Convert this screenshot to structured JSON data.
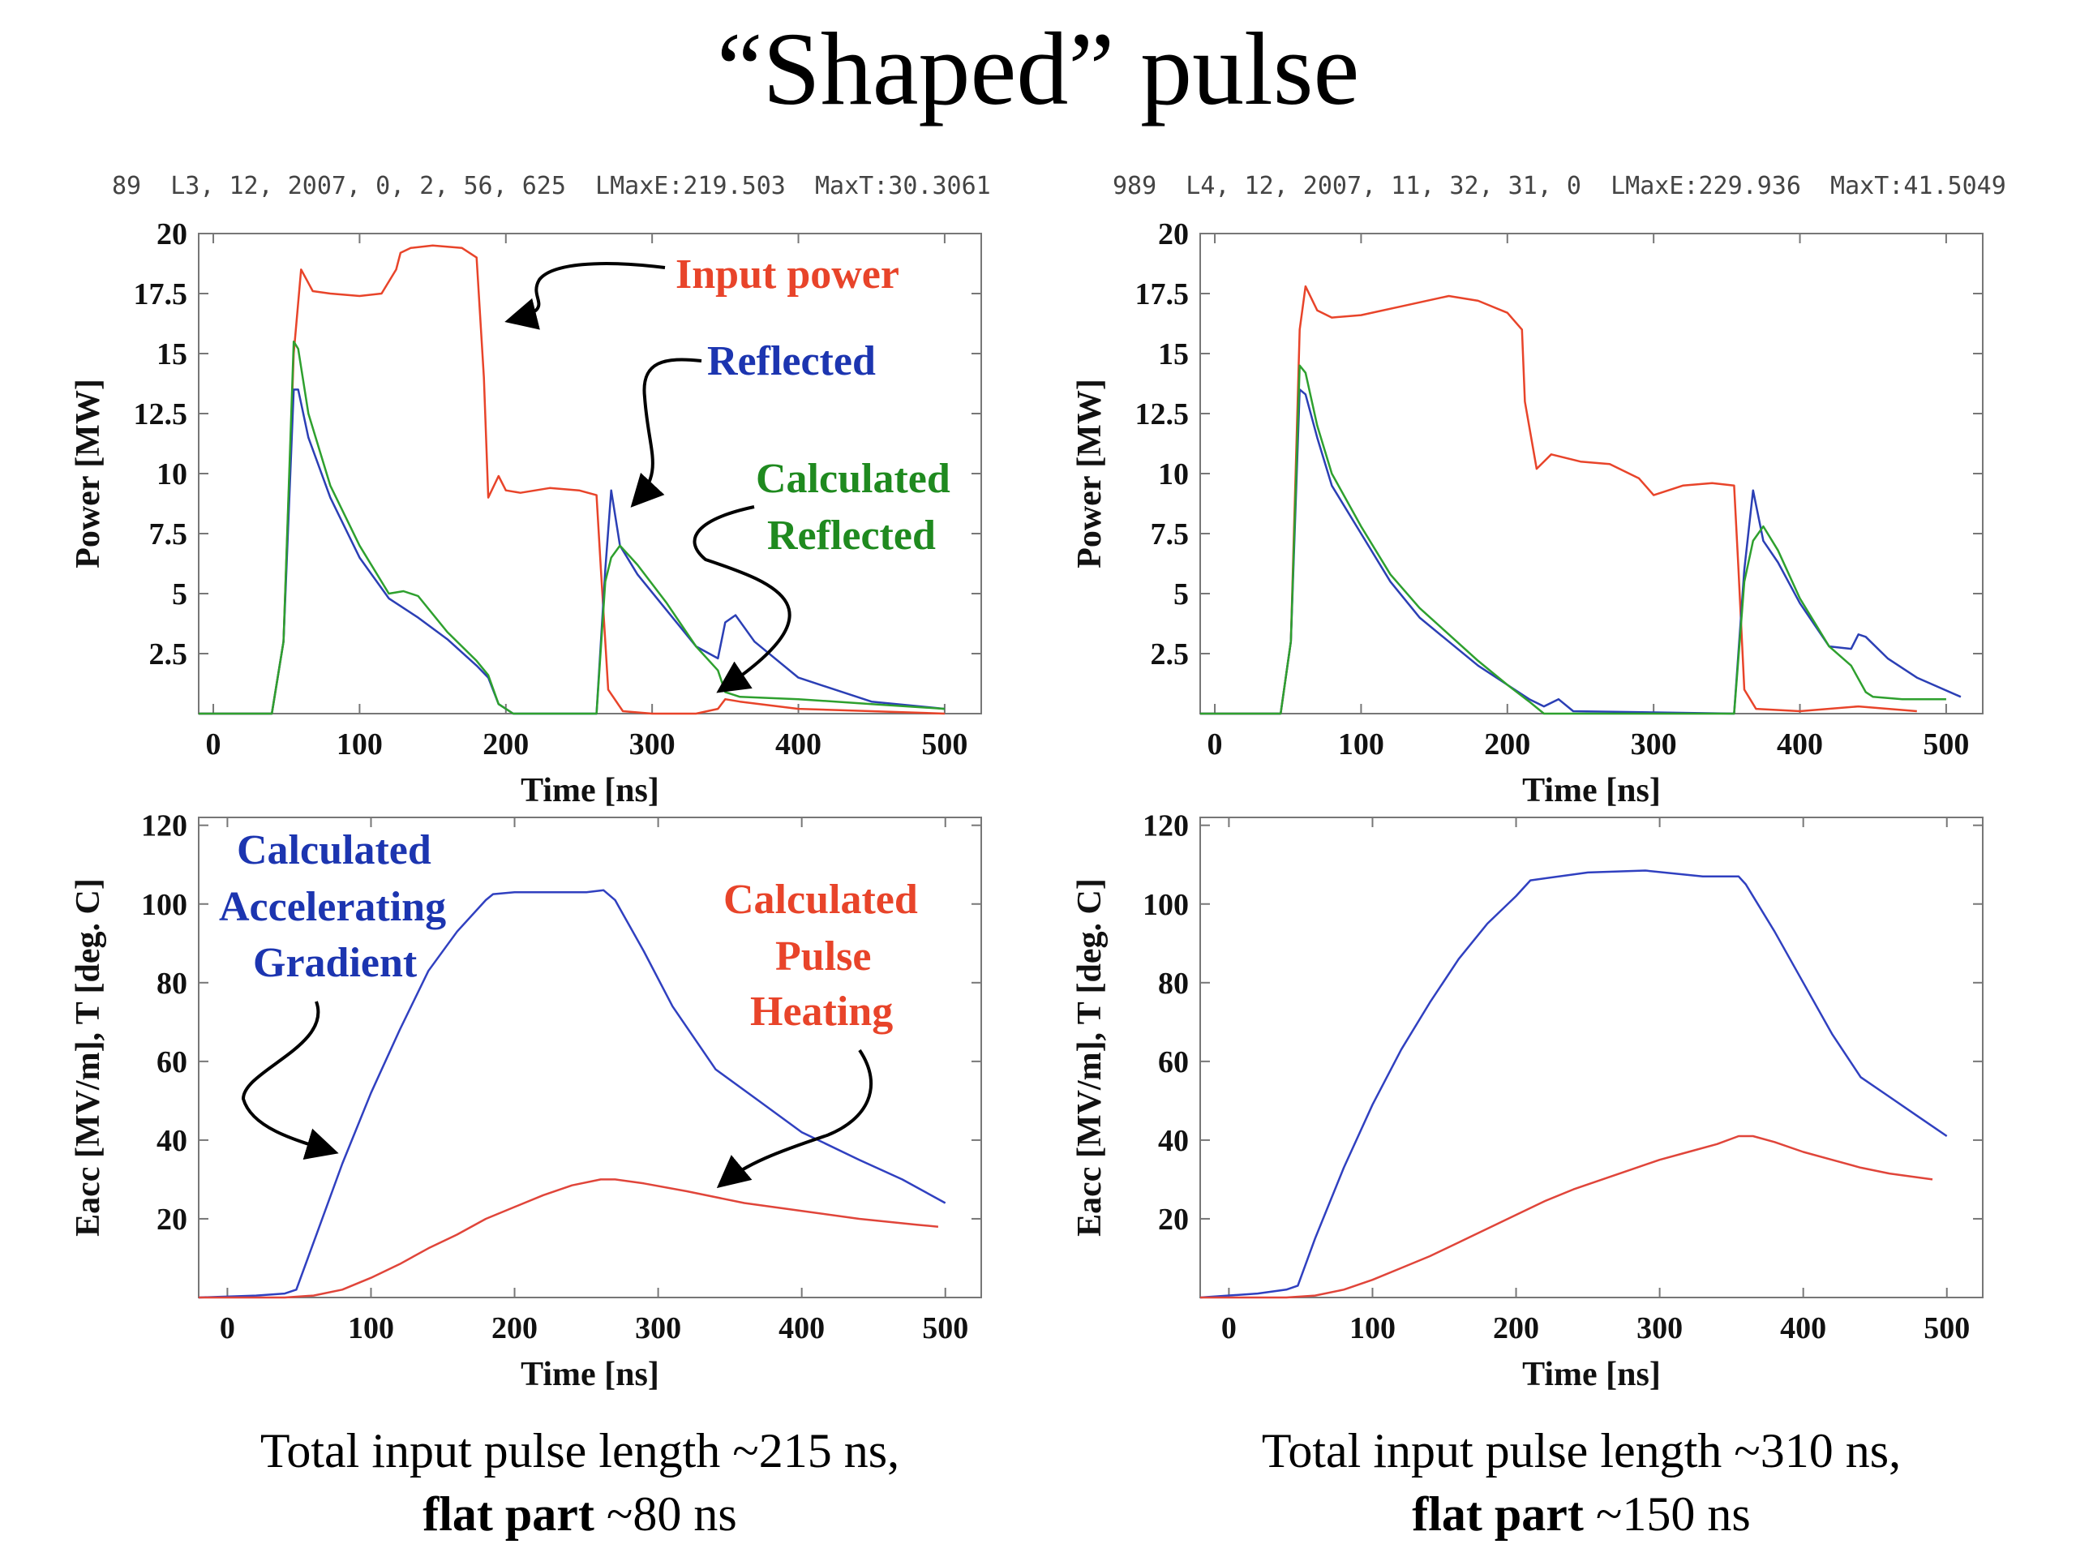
{
  "title": "“Shaped” pulse",
  "left": {
    "header": "89  L3, 12, 2007, 0, 2, 56, 625  LMaxE:219.503  MaxT:30.3061",
    "caption_line1": "Total input pulse length ~215 ns,",
    "caption_bold": "flat part",
    "caption_rest": " ~80 ns"
  },
  "right": {
    "header": "989  L4, 12, 2007, 11, 32, 31, 0  LMaxE:229.936  MaxT:41.5049",
    "caption_line1": "Total input pulse length ~310 ns,",
    "caption_bold": "flat part",
    "caption_rest": " ~150 ns"
  },
  "annotations": {
    "input_power": "Input power",
    "reflected": "Reflected",
    "calc_reflected_1": "Calculated",
    "calc_reflected_2": "Reflected",
    "calc_grad_1": "Calculated",
    "calc_grad_2": "Accelerating",
    "calc_grad_3": "Gradient",
    "calc_heat_1": "Calculated",
    "calc_heat_2": "Pulse",
    "calc_heat_3": "Heating"
  },
  "colors": {
    "input": "#e8442a",
    "reflected": "#2b3fb5",
    "calculated": "#2ea02e",
    "red_line": "#e0453a",
    "blue_line": "#3040c0",
    "green_text": "#1f8a1f",
    "blue_text": "#1c35b0",
    "red_text": "#e8442a"
  },
  "chart_data": [
    {
      "type": "line",
      "xlabel": "Time [ns]",
      "ylabel": "Power [MW]",
      "xlim": [
        -10,
        525
      ],
      "ylim": [
        0,
        20
      ],
      "xticks": [
        0,
        100,
        200,
        300,
        400,
        500
      ],
      "yticks": [
        2.5,
        5,
        7.5,
        10,
        12.5,
        15,
        17.5,
        20
      ],
      "yticklabels": [
        "2.5",
        "5",
        "7.5",
        "10",
        "12.5",
        "15",
        "17.5",
        "20"
      ],
      "series": [
        {
          "name": "Input power",
          "color": "#e8442a",
          "x": [
            -10,
            40,
            48,
            55,
            60,
            68,
            80,
            100,
            115,
            125,
            128,
            135,
            150,
            170,
            180,
            185,
            188,
            195,
            200,
            210,
            230,
            250,
            262,
            265,
            270,
            280,
            300,
            330,
            345,
            350,
            360,
            400,
            450,
            500
          ],
          "y": [
            0,
            0,
            3,
            15,
            18.5,
            17.6,
            17.5,
            17.4,
            17.5,
            18.5,
            19.2,
            19.4,
            19.5,
            19.4,
            19.0,
            14,
            9,
            9.9,
            9.3,
            9.2,
            9.4,
            9.3,
            9.1,
            6,
            1,
            0.1,
            0,
            0,
            0.2,
            0.6,
            0.5,
            0.2,
            0.1,
            0
          ]
        },
        {
          "name": "Reflected",
          "color": "#2b3fb5",
          "x": [
            -10,
            40,
            48,
            55,
            58,
            65,
            80,
            100,
            120,
            140,
            160,
            180,
            188,
            195,
            205,
            262,
            268,
            272,
            278,
            290,
            310,
            330,
            345,
            350,
            357,
            370,
            400,
            450,
            500
          ],
          "y": [
            0,
            0,
            3,
            13.5,
            13.5,
            11.5,
            9.0,
            6.5,
            4.8,
            4.0,
            3.1,
            2.0,
            1.5,
            0.4,
            0,
            0,
            6.0,
            9.3,
            7.0,
            5.8,
            4.3,
            2.8,
            2.3,
            3.8,
            4.1,
            3.0,
            1.5,
            0.5,
            0.2
          ]
        },
        {
          "name": "Calculated Reflected",
          "color": "#2ea02e",
          "x": [
            -10,
            40,
            48,
            55,
            58,
            65,
            80,
            100,
            120,
            130,
            140,
            160,
            180,
            188,
            195,
            205,
            262,
            268,
            272,
            278,
            290,
            310,
            330,
            345,
            350,
            360,
            400,
            450,
            500
          ],
          "y": [
            0,
            0,
            3,
            15.5,
            15.2,
            12.5,
            9.5,
            7.0,
            5.0,
            5.1,
            4.9,
            3.4,
            2.2,
            1.6,
            0.4,
            0,
            0,
            5.5,
            6.5,
            7.0,
            6.2,
            4.6,
            2.8,
            1.8,
            0.9,
            0.7,
            0.6,
            0.4,
            0.2
          ]
        }
      ]
    },
    {
      "type": "line",
      "xlabel": "Time [ns]",
      "ylabel": "Power [MW]",
      "xlim": [
        -10,
        525
      ],
      "ylim": [
        0,
        20
      ],
      "xticks": [
        0,
        100,
        200,
        300,
        400,
        500
      ],
      "yticks": [
        2.5,
        5,
        7.5,
        10,
        12.5,
        15,
        17.5,
        20
      ],
      "yticklabels": [
        "2.5",
        "5",
        "7.5",
        "10",
        "12.5",
        "15",
        "17.5",
        "20"
      ],
      "series": [
        {
          "name": "Input power",
          "color": "#e8442a",
          "x": [
            -10,
            45,
            52,
            58,
            62,
            70,
            80,
            100,
            130,
            160,
            180,
            200,
            210,
            212,
            220,
            230,
            250,
            270,
            290,
            300,
            320,
            340,
            355,
            358,
            362,
            370,
            400,
            440,
            480
          ],
          "y": [
            0,
            0,
            3,
            16,
            17.8,
            16.8,
            16.5,
            16.6,
            17.0,
            17.4,
            17.2,
            16.7,
            16.0,
            13,
            10.2,
            10.8,
            10.5,
            10.4,
            9.8,
            9.1,
            9.5,
            9.6,
            9.5,
            6,
            1,
            0.2,
            0.1,
            0.3,
            0.1
          ]
        },
        {
          "name": "Reflected",
          "color": "#2b3fb5",
          "x": [
            -10,
            45,
            52,
            58,
            62,
            70,
            80,
            100,
            120,
            140,
            160,
            180,
            200,
            215,
            225,
            235,
            245,
            355,
            362,
            368,
            375,
            385,
            400,
            420,
            435,
            440,
            445,
            460,
            480,
            510
          ],
          "y": [
            0,
            0,
            3,
            13.5,
            13.3,
            11.5,
            9.5,
            7.5,
            5.5,
            4.0,
            3.0,
            2.0,
            1.2,
            0.6,
            0.3,
            0.6,
            0.1,
            0,
            6.0,
            9.3,
            7.2,
            6.3,
            4.6,
            2.8,
            2.7,
            3.3,
            3.2,
            2.3,
            1.5,
            0.7
          ]
        },
        {
          "name": "Calculated Reflected",
          "color": "#2ea02e",
          "x": [
            -10,
            45,
            52,
            58,
            62,
            70,
            80,
            100,
            120,
            140,
            160,
            180,
            200,
            215,
            225,
            355,
            362,
            368,
            375,
            385,
            400,
            420,
            435,
            445,
            450,
            470,
            500
          ],
          "y": [
            0,
            0,
            3,
            14.5,
            14.2,
            12.0,
            10.0,
            7.8,
            5.8,
            4.4,
            3.3,
            2.2,
            1.2,
            0.5,
            0,
            0,
            5.5,
            7.2,
            7.8,
            6.8,
            4.8,
            2.8,
            2.0,
            0.9,
            0.7,
            0.6,
            0.6
          ]
        }
      ]
    },
    {
      "type": "line",
      "xlabel": "Time [ns]",
      "ylabel": "Eacc [MV/m], T [deg. C]",
      "xlim": [
        -20,
        525
      ],
      "ylim": [
        0,
        122
      ],
      "xticks": [
        0,
        100,
        200,
        300,
        400,
        500
      ],
      "yticks": [
        20,
        40,
        60,
        80,
        100,
        120
      ],
      "yticklabels": [
        "20",
        "40",
        "60",
        "80",
        "100",
        "120"
      ],
      "series": [
        {
          "name": "Calculated Accelerating Gradient",
          "color": "#3040c0",
          "x": [
            -20,
            20,
            40,
            48,
            60,
            80,
            100,
            120,
            140,
            160,
            180,
            185,
            200,
            250,
            262,
            270,
            290,
            310,
            340,
            370,
            400,
            440,
            470,
            500
          ],
          "y": [
            0,
            0.5,
            1,
            2,
            14,
            34,
            52,
            68,
            83,
            93,
            101,
            102.5,
            103,
            103,
            103.5,
            101,
            88,
            74,
            58,
            50,
            42,
            35,
            30,
            24
          ]
        },
        {
          "name": "Calculated Pulse Heating",
          "color": "#e0453a",
          "x": [
            -20,
            40,
            60,
            80,
            100,
            120,
            140,
            160,
            180,
            200,
            220,
            240,
            260,
            270,
            290,
            320,
            360,
            400,
            440,
            480,
            495
          ],
          "y": [
            0,
            0,
            0.5,
            2,
            5,
            8.5,
            12.5,
            16,
            20,
            23,
            26,
            28.5,
            30,
            30,
            29,
            27,
            24,
            22,
            20,
            18.5,
            18
          ]
        }
      ]
    },
    {
      "type": "line",
      "xlabel": "Time [ns]",
      "ylabel": "Eacc [MV/m], T [deg. C]",
      "xlim": [
        -20,
        525
      ],
      "ylim": [
        0,
        122
      ],
      "xticks": [
        0,
        100,
        200,
        300,
        400,
        500
      ],
      "yticks": [
        20,
        40,
        60,
        80,
        100,
        120
      ],
      "yticklabels": [
        "20",
        "40",
        "60",
        "80",
        "100",
        "120"
      ],
      "series": [
        {
          "name": "Calculated Accelerating Gradient",
          "color": "#3040c0",
          "x": [
            -20,
            20,
            40,
            48,
            60,
            80,
            100,
            120,
            140,
            160,
            180,
            200,
            210,
            250,
            290,
            330,
            355,
            360,
            380,
            400,
            420,
            440,
            460,
            480,
            500
          ],
          "y": [
            0,
            1,
            2,
            3,
            15,
            33,
            49,
            63,
            75,
            86,
            95,
            102,
            106,
            108,
            108.5,
            107,
            107,
            105,
            93,
            80,
            67,
            56,
            51,
            46,
            41
          ]
        },
        {
          "name": "Calculated Pulse Heating",
          "color": "#e0453a",
          "x": [
            -20,
            40,
            60,
            80,
            100,
            120,
            140,
            160,
            180,
            200,
            220,
            240,
            260,
            280,
            300,
            320,
            340,
            355,
            365,
            380,
            400,
            420,
            440,
            460,
            490
          ],
          "y": [
            0,
            0,
            0.5,
            2,
            4.5,
            7.5,
            10.5,
            14,
            17.5,
            21,
            24.5,
            27.5,
            30,
            32.5,
            35,
            37,
            39,
            41,
            41,
            39.5,
            37,
            35,
            33,
            31.5,
            30
          ]
        }
      ]
    }
  ]
}
